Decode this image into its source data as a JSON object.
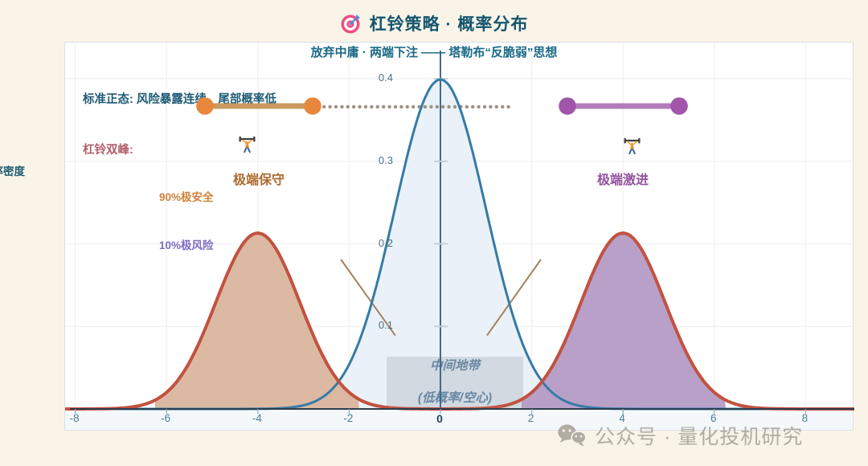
{
  "header": {
    "icon": "dart-target-icon",
    "title": "杠铃策略 · 概率分布",
    "subtitle": "放弃中庸 · 两端下注 —— 塔勒布“反脆弱”思想"
  },
  "plot": {
    "ylabel_partially_clipped": "概率密度",
    "annotations": {
      "normal_line": "标准正态: 风险暴露连续，尾部概率低",
      "barbell_line": "杠铃双峰:",
      "left_peak": "极端保守",
      "right_peak": "极端激进",
      "safe": "90%极安全",
      "risk": "10%极风险",
      "middle_1": "中间地带",
      "middle_2": "(低概率/空心)"
    }
  },
  "watermark": {
    "icon": "wechat-icon",
    "text": "公众号 · 量化投机研究"
  },
  "colors": {
    "page_bg": "#faf4e8",
    "title": "#14556e",
    "subtitle": "#1a6a86",
    "normal_note": "#1d5a74",
    "barbell_note": "#b05f68",
    "left_peak_text": "#ad6a2e",
    "right_peak_text": "#93519f",
    "safe_text": "#d0813a",
    "risk_text": "#7e6cc4",
    "axis_text": "#4e7e96",
    "watermark": "#b2ada4"
  },
  "chart_data": {
    "type": "line",
    "title": "杠铃策略 · 概率分布",
    "xlabel": "",
    "ylabel": "概率密度",
    "xlim": [
      -8.2,
      9.1
    ],
    "ylim": [
      0,
      0.42
    ],
    "x_ticks": [
      -8,
      -6,
      -4,
      -2,
      0,
      2,
      4,
      6,
      8
    ],
    "y_ticks": [
      0.1,
      0.2,
      0.3,
      0.4
    ],
    "grid": true,
    "legend": "none",
    "series": [
      {
        "name": "标准正态",
        "shape": "gaussian",
        "mean": 0,
        "sigma": 1,
        "peak": 0.399,
        "line_color": "#357ba6",
        "line_width": 3,
        "fill_color": "#e7eef7",
        "fill_opacity": 0.85,
        "sample_points": {
          "x": [
            -3,
            -2,
            -1,
            0,
            1,
            2,
            3
          ],
          "y": [
            0.004,
            0.054,
            0.242,
            0.399,
            0.242,
            0.054,
            0.004
          ]
        }
      },
      {
        "name": "杠铃双峰",
        "shape": "bimodal-gaussian",
        "means": [
          -4,
          4
        ],
        "sigma": 0.92,
        "peak": 0.213,
        "line_color": "#c25240",
        "line_width": 4,
        "fill_left": {
          "range": [
            -6.25,
            -1.78
          ],
          "color": "#d9b39a",
          "opacity": 0.92
        },
        "fill_right": {
          "range": [
            1.78,
            6.25
          ],
          "color": "#b298c3",
          "opacity": 0.92
        },
        "sample_points": {
          "x": [
            -6,
            -5,
            -4,
            -3,
            -2,
            0,
            2,
            3,
            4,
            5,
            6
          ],
          "y": [
            0.02,
            0.118,
            0.213,
            0.118,
            0.02,
            0,
            0.02,
            0.118,
            0.213,
            0.118,
            0.02
          ]
        }
      }
    ],
    "annotations": {
      "center_line_x": 0,
      "dotted_line": {
        "y": 0.366,
        "x_range": [
          -2.94,
          1.6
        ],
        "color": "#9c9286"
      },
      "barbells": [
        {
          "x_range": [
            -5.14,
            -2.8
          ],
          "y": 0.366,
          "color": "#e8873c",
          "bar_color": "#cb9a5e"
        },
        {
          "x_range": [
            2.8,
            5.25
          ],
          "y": 0.366,
          "color": "#a155ab",
          "bar_color": "#b27cba"
        }
      ],
      "funnel_lines": [
        {
          "from": [
            -2.18,
            0.181
          ],
          "to": [
            -0.99,
            0.089
          ]
        },
        {
          "from": [
            1.02,
            0.089
          ],
          "to": [
            2.2,
            0.181
          ]
        }
      ],
      "middle_box": {
        "x_range": [
          -1.18,
          1.81
        ],
        "y_range": [
          0,
          0.063
        ]
      }
    }
  }
}
